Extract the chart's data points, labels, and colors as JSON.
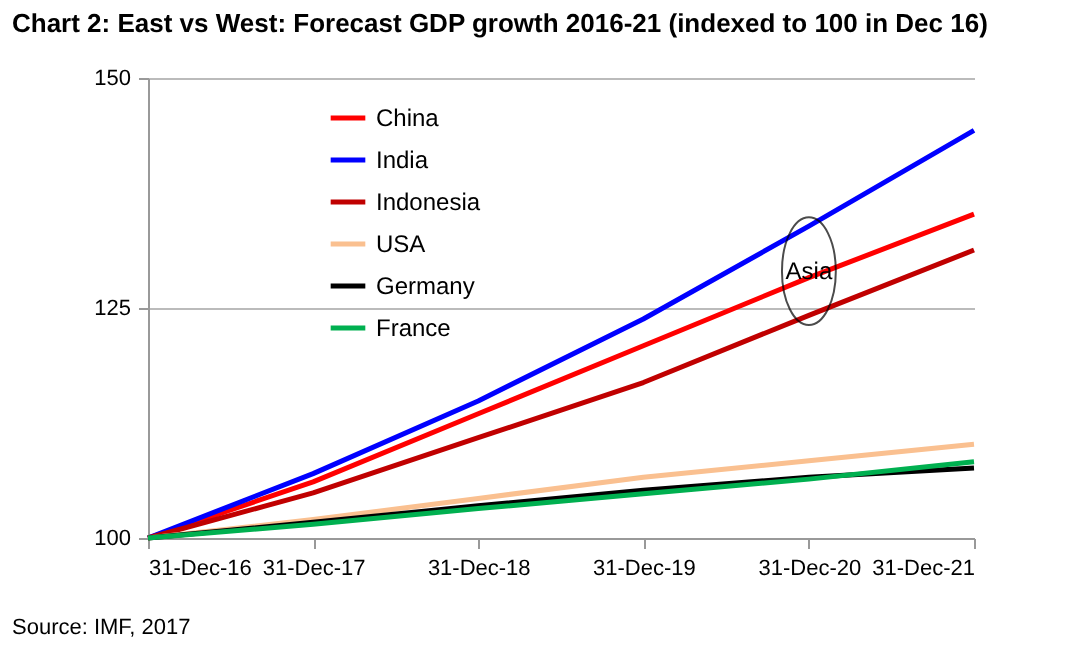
{
  "chart_data": {
    "type": "line",
    "title": "Chart 2: East vs West: Forecast GDP growth 2016-21 (indexed to 100 in Dec 16)",
    "x": [
      "2016-12-31",
      "2017-12-31",
      "2018-12-31",
      "2019-12-31",
      "2020-12-31",
      "2021-12-31"
    ],
    "series": [
      {
        "name": "China",
        "color": "#ff0000",
        "values": [
          100,
          106.1,
          113.5,
          120.9,
          128.3,
          135.2
        ]
      },
      {
        "name": "India",
        "color": "#0000ff",
        "values": [
          100,
          107.0,
          114.9,
          123.8,
          133.9,
          144.3
        ]
      },
      {
        "name": "Indonesia",
        "color": "#c00000",
        "values": [
          100,
          104.9,
          110.9,
          116.9,
          124.2,
          131.3
        ]
      },
      {
        "name": "USA",
        "color": "#fac090",
        "values": [
          100,
          102.0,
          104.3,
          106.6,
          108.4,
          110.2
        ]
      },
      {
        "name": "Germany",
        "color": "#000000",
        "values": [
          100,
          101.7,
          103.5,
          105.2,
          106.6,
          107.6
        ]
      },
      {
        "name": "France",
        "color": "#00b050",
        "values": [
          100,
          101.5,
          103.2,
          104.8,
          106.4,
          108.3
        ]
      }
    ],
    "xlim": [
      "2016-12-31",
      "2021-12-31"
    ],
    "xticks": [
      {
        "value": "2016-12-31",
        "label": "31-Dec-16"
      },
      {
        "value": "2017-12-31",
        "label": "31-Dec-17"
      },
      {
        "value": "2018-12-31",
        "label": "31-Dec-18"
      },
      {
        "value": "2019-12-31",
        "label": "31-Dec-19"
      },
      {
        "value": "2020-12-31",
        "label": "31-Dec-20"
      },
      {
        "value": "2021-12-31",
        "label": "31-Dec-21"
      }
    ],
    "ylim": [
      100,
      150
    ],
    "yticks": [
      100,
      125,
      150
    ],
    "grid": "y",
    "legend": "top left",
    "marker": "none",
    "line_style": "solid",
    "annotations": [
      {
        "text": "Asia",
        "x": "2020-12-31",
        "y": 129
      },
      "Source: IMF, 2017"
    ]
  }
}
